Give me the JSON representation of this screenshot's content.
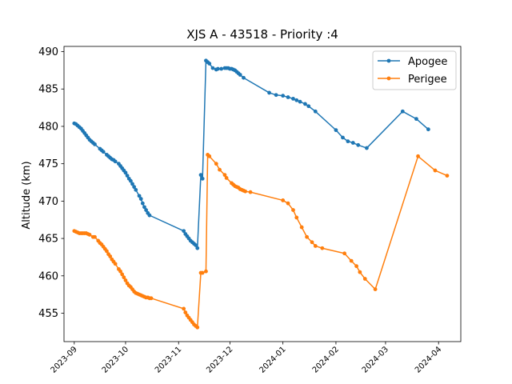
{
  "chart_data": {
    "type": "line",
    "title": "XJS A - 43518 - Priority :4",
    "xlabel": "",
    "ylabel": "Altitude (km)",
    "xlim": [
      "2023-08-26",
      "2024-04-14"
    ],
    "ylim": [
      451.2,
      490.7
    ],
    "x_ticks": [
      "2023-09",
      "2023-10",
      "2023-11",
      "2023-12",
      "2024-01",
      "2024-02",
      "2024-03",
      "2024-04"
    ],
    "y_ticks": [
      455,
      460,
      465,
      470,
      475,
      480,
      485,
      490
    ],
    "grid": false,
    "legend_position": "top-right",
    "colors": {
      "Apogee": "#1f77b4",
      "Perigee": "#ff7f0e"
    },
    "series": [
      {
        "name": "Apogee",
        "color": "#1f77b4",
        "points": [
          [
            "2023-09-01",
            480.4
          ],
          [
            "2023-09-02",
            480.3
          ],
          [
            "2023-09-03",
            480.1
          ],
          [
            "2023-09-04",
            479.9
          ],
          [
            "2023-09-05",
            479.7
          ],
          [
            "2023-09-06",
            479.4
          ],
          [
            "2023-09-07",
            479.1
          ],
          [
            "2023-09-08",
            478.8
          ],
          [
            "2023-09-09",
            478.5
          ],
          [
            "2023-09-10",
            478.2
          ],
          [
            "2023-09-11",
            478.0
          ],
          [
            "2023-09-12",
            477.8
          ],
          [
            "2023-09-13",
            477.6
          ],
          [
            "2023-09-16",
            477.0
          ],
          [
            "2023-09-17",
            476.8
          ],
          [
            "2023-09-18",
            476.6
          ],
          [
            "2023-09-20",
            476.2
          ],
          [
            "2023-09-21",
            476.0
          ],
          [
            "2023-09-22",
            475.8
          ],
          [
            "2023-09-23",
            475.6
          ],
          [
            "2023-09-24",
            475.5
          ],
          [
            "2023-09-25",
            475.3
          ],
          [
            "2023-09-27",
            475.0
          ],
          [
            "2023-09-28",
            474.7
          ],
          [
            "2023-09-29",
            474.4
          ],
          [
            "2023-09-30",
            474.1
          ],
          [
            "2023-10-01",
            473.8
          ],
          [
            "2023-10-02",
            473.4
          ],
          [
            "2023-10-03",
            473.0
          ],
          [
            "2023-10-04",
            472.7
          ],
          [
            "2023-10-05",
            472.3
          ],
          [
            "2023-10-06",
            471.9
          ],
          [
            "2023-10-07",
            471.5
          ],
          [
            "2023-10-09",
            470.7
          ],
          [
            "2023-10-10",
            470.3
          ],
          [
            "2023-10-11",
            469.7
          ],
          [
            "2023-10-12",
            469.2
          ],
          [
            "2023-10-13",
            468.8
          ],
          [
            "2023-10-14",
            468.4
          ],
          [
            "2023-10-15",
            468.1
          ],
          [
            "2023-11-04",
            466.0
          ],
          [
            "2023-11-05",
            465.6
          ],
          [
            "2023-11-06",
            465.3
          ],
          [
            "2023-11-07",
            465.0
          ],
          [
            "2023-11-08",
            464.7
          ],
          [
            "2023-11-09",
            464.5
          ],
          [
            "2023-11-10",
            464.3
          ],
          [
            "2023-11-11",
            464.1
          ],
          [
            "2023-11-12",
            463.7
          ],
          [
            "2023-11-14",
            473.5
          ],
          [
            "2023-11-15",
            473.0
          ],
          [
            "2023-11-17",
            488.8
          ],
          [
            "2023-11-18",
            488.6
          ],
          [
            "2023-11-19",
            488.4
          ],
          [
            "2023-11-21",
            487.8
          ],
          [
            "2023-11-23",
            487.6
          ],
          [
            "2023-11-24",
            487.7
          ],
          [
            "2023-11-26",
            487.7
          ],
          [
            "2023-11-28",
            487.8
          ],
          [
            "2023-11-29",
            487.8
          ],
          [
            "2023-11-30",
            487.8
          ],
          [
            "2023-12-01",
            487.7
          ],
          [
            "2023-12-02",
            487.7
          ],
          [
            "2023-12-03",
            487.6
          ],
          [
            "2023-12-04",
            487.5
          ],
          [
            "2023-12-05",
            487.3
          ],
          [
            "2023-12-06",
            487.1
          ],
          [
            "2023-12-07",
            486.9
          ],
          [
            "2023-12-09",
            486.5
          ],
          [
            "2023-12-24",
            484.5
          ],
          [
            "2023-12-28",
            484.2
          ],
          [
            "2024-01-01",
            484.1
          ],
          [
            "2024-01-04",
            483.9
          ],
          [
            "2024-01-07",
            483.7
          ],
          [
            "2024-01-09",
            483.5
          ],
          [
            "2024-01-11",
            483.3
          ],
          [
            "2024-01-14",
            483.0
          ],
          [
            "2024-01-16",
            482.7
          ],
          [
            "2024-01-20",
            482.0
          ],
          [
            "2024-02-01",
            479.5
          ],
          [
            "2024-02-05",
            478.5
          ],
          [
            "2024-02-08",
            478.0
          ],
          [
            "2024-02-11",
            477.8
          ],
          [
            "2024-02-14",
            477.5
          ],
          [
            "2024-02-19",
            477.1
          ],
          [
            "2024-03-11",
            482.0
          ],
          [
            "2024-03-19",
            481.0
          ],
          [
            "2024-03-26",
            479.6
          ]
        ]
      },
      {
        "name": "Perigee",
        "color": "#ff7f0e",
        "points": [
          [
            "2023-09-01",
            466.0
          ],
          [
            "2023-09-02",
            465.9
          ],
          [
            "2023-09-03",
            465.8
          ],
          [
            "2023-09-04",
            465.7
          ],
          [
            "2023-09-05",
            465.7
          ],
          [
            "2023-09-06",
            465.7
          ],
          [
            "2023-09-07",
            465.7
          ],
          [
            "2023-09-08",
            465.7
          ],
          [
            "2023-09-09",
            465.6
          ],
          [
            "2023-09-10",
            465.5
          ],
          [
            "2023-09-12",
            465.2
          ],
          [
            "2023-09-13",
            465.2
          ],
          [
            "2023-09-15",
            464.7
          ],
          [
            "2023-09-16",
            464.4
          ],
          [
            "2023-09-17",
            464.2
          ],
          [
            "2023-09-18",
            463.9
          ],
          [
            "2023-09-19",
            463.6
          ],
          [
            "2023-09-20",
            463.3
          ],
          [
            "2023-09-21",
            462.9
          ],
          [
            "2023-09-22",
            462.6
          ],
          [
            "2023-09-23",
            462.2
          ],
          [
            "2023-09-24",
            461.9
          ],
          [
            "2023-09-25",
            461.6
          ],
          [
            "2023-09-27",
            460.9
          ],
          [
            "2023-09-28",
            460.6
          ],
          [
            "2023-09-29",
            460.2
          ],
          [
            "2023-09-30",
            459.8
          ],
          [
            "2023-10-01",
            459.4
          ],
          [
            "2023-10-02",
            459.0
          ],
          [
            "2023-10-03",
            458.7
          ],
          [
            "2023-10-04",
            458.5
          ],
          [
            "2023-10-05",
            458.2
          ],
          [
            "2023-10-06",
            457.9
          ],
          [
            "2023-10-07",
            457.7
          ],
          [
            "2023-10-08",
            457.6
          ],
          [
            "2023-10-09",
            457.5
          ],
          [
            "2023-10-10",
            457.4
          ],
          [
            "2023-10-11",
            457.3
          ],
          [
            "2023-10-12",
            457.2
          ],
          [
            "2023-10-13",
            457.1
          ],
          [
            "2023-10-14",
            457.1
          ],
          [
            "2023-10-15",
            457.0
          ],
          [
            "2023-10-16",
            457.0
          ],
          [
            "2023-11-04",
            455.6
          ],
          [
            "2023-11-05",
            455.1
          ],
          [
            "2023-11-06",
            454.7
          ],
          [
            "2023-11-07",
            454.4
          ],
          [
            "2023-11-08",
            454.1
          ],
          [
            "2023-11-09",
            453.8
          ],
          [
            "2023-11-10",
            453.5
          ],
          [
            "2023-11-11",
            453.3
          ],
          [
            "2023-11-12",
            453.1
          ],
          [
            "2023-11-14",
            460.4
          ],
          [
            "2023-11-15",
            460.4
          ],
          [
            "2023-11-17",
            460.6
          ],
          [
            "2023-11-18",
            476.2
          ],
          [
            "2023-11-19",
            476.0
          ],
          [
            "2023-11-23",
            475.0
          ],
          [
            "2023-11-25",
            474.2
          ],
          [
            "2023-11-28",
            473.5
          ],
          [
            "2023-11-29",
            473.1
          ],
          [
            "2023-12-02",
            472.4
          ],
          [
            "2023-12-03",
            472.2
          ],
          [
            "2023-12-04",
            472.0
          ],
          [
            "2023-12-05",
            471.9
          ],
          [
            "2023-12-06",
            471.8
          ],
          [
            "2023-12-07",
            471.6
          ],
          [
            "2023-12-08",
            471.5
          ],
          [
            "2023-12-09",
            471.4
          ],
          [
            "2023-12-10",
            471.3
          ],
          [
            "2023-12-13",
            471.2
          ],
          [
            "2024-01-01",
            470.1
          ],
          [
            "2024-01-04",
            469.7
          ],
          [
            "2024-01-07",
            468.8
          ],
          [
            "2024-01-09",
            467.8
          ],
          [
            "2024-01-12",
            466.5
          ],
          [
            "2024-01-15",
            465.2
          ],
          [
            "2024-01-18",
            464.5
          ],
          [
            "2024-01-20",
            464.0
          ],
          [
            "2024-01-24",
            463.7
          ],
          [
            "2024-02-06",
            463.0
          ],
          [
            "2024-02-10",
            462.0
          ],
          [
            "2024-02-13",
            461.3
          ],
          [
            "2024-02-15",
            460.5
          ],
          [
            "2024-02-18",
            459.6
          ],
          [
            "2024-02-24",
            458.2
          ],
          [
            "2024-03-20",
            476.0
          ],
          [
            "2024-03-30",
            474.1
          ],
          [
            "2024-04-06",
            473.4
          ]
        ]
      }
    ]
  }
}
